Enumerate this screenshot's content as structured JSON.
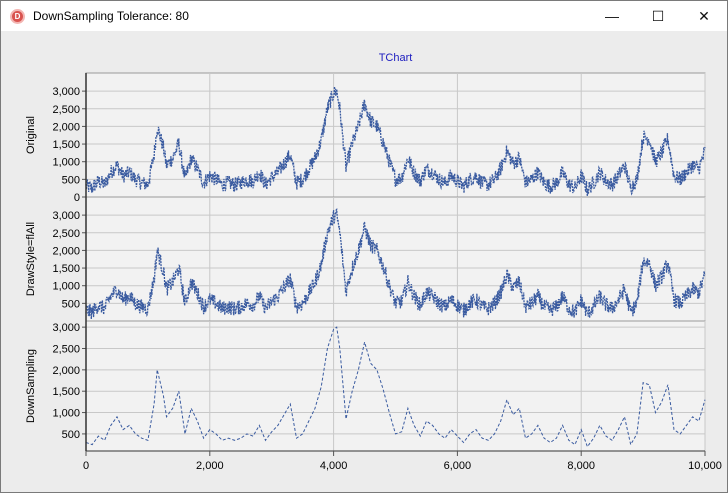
{
  "window": {
    "title": "DownSampling Tolerance: 80",
    "minimize_glyph": "—",
    "maximize_glyph": "☐",
    "close_glyph": "✕",
    "app_icon_letter": "D"
  },
  "colors": {
    "series": "#3a5ba0",
    "panel_bg": "#f2f2f2",
    "grid": "#c8c8c8",
    "title": "#2020c0"
  },
  "chart_data": {
    "type": "line",
    "title": "TChart",
    "xlabel": "",
    "xlim": [
      0,
      10000
    ],
    "x_ticks": [
      0,
      2000,
      4000,
      6000,
      8000,
      10000
    ],
    "x_tick_labels": [
      "0",
      "2,000",
      "4,000",
      "6,000",
      "8,000",
      "10,000"
    ],
    "grid": true,
    "panels": [
      {
        "ylabel": "Original",
        "ylim": [
          0,
          3400
        ],
        "y_ticks": [
          0,
          500,
          1000,
          1500,
          2000,
          2500,
          3000
        ],
        "y_tick_labels": [
          "0",
          "500",
          "1,000",
          "1,500",
          "2,000",
          "2,500",
          "3,000"
        ],
        "style": "dense"
      },
      {
        "ylabel": "DrawStyle=flAll",
        "ylim": [
          0,
          3400
        ],
        "y_ticks": [
          500,
          1000,
          1500,
          2000,
          2500,
          3000
        ],
        "y_tick_labels": [
          "500",
          "1,000",
          "1,500",
          "2,000",
          "2,500",
          "3,000"
        ],
        "style": "dense"
      },
      {
        "ylabel": "DownSampling",
        "ylim": [
          100,
          3050
        ],
        "y_ticks": [
          500,
          1000,
          1500,
          2000,
          2500,
          3000
        ],
        "y_tick_labels": [
          "500",
          "1,000",
          "1,500",
          "2,000",
          "2,500",
          "3,000"
        ],
        "style": "dashed"
      }
    ],
    "series": [
      {
        "x": [
          0,
          100,
          200,
          300,
          400,
          500,
          600,
          700,
          800,
          900,
          1000,
          1100,
          1150,
          1200,
          1250,
          1300,
          1400,
          1500,
          1600,
          1700,
          1800,
          1900,
          2000,
          2100,
          2200,
          2300,
          2400,
          2500,
          2600,
          2700,
          2800,
          2900,
          3000,
          3100,
          3200,
          3300,
          3400,
          3500,
          3600,
          3700,
          3800,
          3900,
          4000,
          4050,
          4100,
          4200,
          4300,
          4400,
          4500,
          4600,
          4700,
          4800,
          4900,
          5000,
          5100,
          5200,
          5300,
          5400,
          5500,
          5600,
          5700,
          5800,
          5900,
          6000,
          6100,
          6200,
          6300,
          6400,
          6500,
          6600,
          6700,
          6800,
          6900,
          7000,
          7100,
          7200,
          7300,
          7400,
          7500,
          7600,
          7700,
          7800,
          7900,
          8000,
          8100,
          8200,
          8300,
          8400,
          8500,
          8600,
          8700,
          8800,
          8900,
          9000,
          9100,
          9200,
          9300,
          9400,
          9500,
          9600,
          9700,
          9800,
          9900,
          10000
        ],
        "y": [
          300,
          250,
          450,
          350,
          700,
          900,
          600,
          700,
          500,
          400,
          350,
          1200,
          2000,
          1700,
          1400,
          900,
          1100,
          1500,
          500,
          1100,
          800,
          400,
          600,
          500,
          350,
          400,
          350,
          400,
          500,
          450,
          700,
          350,
          550,
          700,
          950,
          1200,
          400,
          500,
          800,
          1100,
          1600,
          2500,
          2950,
          3000,
          2500,
          850,
          1500,
          2000,
          2650,
          2150,
          2000,
          1550,
          1000,
          500,
          550,
          1100,
          700,
          450,
          800,
          700,
          500,
          400,
          600,
          450,
          300,
          500,
          600,
          400,
          350,
          500,
          800,
          1300,
          950,
          1100,
          400,
          500,
          700,
          400,
          300,
          400,
          700,
          350,
          250,
          600,
          200,
          400,
          700,
          450,
          350,
          600,
          900,
          250,
          500,
          1700,
          1650,
          1000,
          1250,
          1650,
          600,
          500,
          700,
          900,
          800,
          1300
        ]
      }
    ]
  }
}
